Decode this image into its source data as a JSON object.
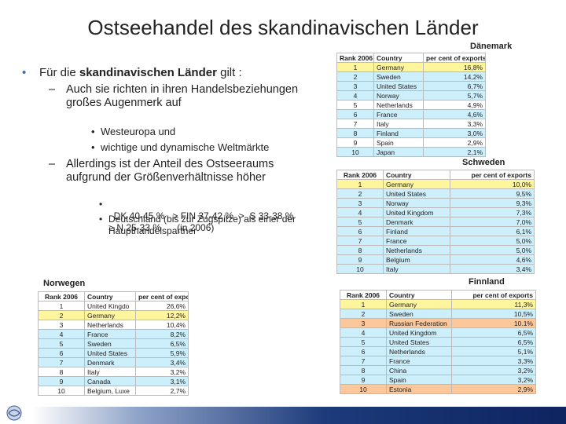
{
  "title": "Ostseehandel des skandinavischen Länder",
  "bullets": [
    {
      "parts": [
        "Für die ",
        "skandinavischen Länder",
        " gilt :"
      ],
      "sub": [
        {
          "text": "Auch sie richten in ihren Handelsbeziehungen großes Augenmerk auf",
          "sub": [
            "Westeuropa und",
            "wichtige und dynamische Weltmärkte"
          ]
        },
        {
          "text": "Allerdings ist der Anteil des Ostseeraums aufgrund der Größenverhältnisse höher",
          "sub": [
            "DK 40-45 %   > FIN 37-42 %  >  S 33-38 %     > N 25-33 %      (in 2006)",
            "Deutschland (bis zur Zugspitze) als einer der Haupthandelspartner"
          ]
        }
      ]
    }
  ],
  "tables": [
    {
      "label": "Dänemark",
      "header": [
        "Rank 2006",
        "Country",
        "per cent of exports"
      ],
      "rows": [
        [
          1,
          "Germany",
          "16,8%",
          "#fff59d"
        ],
        [
          2,
          "Sweden",
          "14,2%",
          "#cdeefb"
        ],
        [
          3,
          "United States",
          "6,7%",
          "#cdeefb"
        ],
        [
          4,
          "Norway",
          "5,7%",
          "#cdeefb"
        ],
        [
          5,
          "Netherlands",
          "4,9%",
          "#ffffff"
        ],
        [
          6,
          "France",
          "4,6%",
          "#cdeefb"
        ],
        [
          7,
          "Italy",
          "3,3%",
          "#ffffff"
        ],
        [
          8,
          "Finland",
          "3,0%",
          "#cdeefb"
        ],
        [
          9,
          "Spain",
          "2,9%",
          "#ffffff"
        ],
        [
          10,
          "Japan",
          "2,1%",
          "#cdeefb"
        ]
      ]
    },
    {
      "label": "Schweden",
      "header": [
        "Rank 2006",
        "Country",
        "per cent of exports"
      ],
      "rows": [
        [
          1,
          "Germany",
          "10,0%",
          "#fff59d"
        ],
        [
          2,
          "United States",
          "9,5%",
          "#cdeefb"
        ],
        [
          3,
          "Norway",
          "9,3%",
          "#cdeefb"
        ],
        [
          4,
          "United Kingdom",
          "7,3%",
          "#cdeefb"
        ],
        [
          5,
          "Denmark",
          "7,0%",
          "#cdeefb"
        ],
        [
          6,
          "Finland",
          "6,1%",
          "#cdeefb"
        ],
        [
          7,
          "France",
          "5,0%",
          "#cdeefb"
        ],
        [
          8,
          "Netherlands",
          "5,0%",
          "#cdeefb"
        ],
        [
          9,
          "Belgium",
          "4,6%",
          "#cdeefb"
        ],
        [
          10,
          "Italy",
          "3,4%",
          "#cdeefb"
        ]
      ]
    },
    {
      "label": "Norwegen",
      "header": [
        "Rank 2006",
        "Country",
        "per cent of exports"
      ],
      "rows": [
        [
          1,
          "United Kingdo",
          "26,6%",
          "#ffffff"
        ],
        [
          2,
          "Germany",
          "12,2%",
          "#fff59d"
        ],
        [
          3,
          "Netherlands",
          "10,4%",
          "#ffffff"
        ],
        [
          4,
          "France",
          "8,2%",
          "#cdeefb"
        ],
        [
          5,
          "Sweden",
          "6,5%",
          "#cdeefb"
        ],
        [
          6,
          "United States",
          "5,9%",
          "#cdeefb"
        ],
        [
          7,
          "Denmark",
          "3,4%",
          "#cdeefb"
        ],
        [
          8,
          "Italy",
          "3,2%",
          "#ffffff"
        ],
        [
          9,
          "Canada",
          "3,1%",
          "#cdeefb"
        ],
        [
          10,
          "Belgium, Luxe",
          "2,7%",
          "#ffffff"
        ]
      ]
    },
    {
      "label": "Finnland",
      "header": [
        "Rank 2006",
        "Country",
        "per cent of exports"
      ],
      "rows": [
        [
          1,
          "Germany",
          "11,3%",
          "#fff59d"
        ],
        [
          2,
          "Sweden",
          "10,5%",
          "#cdeefb"
        ],
        [
          3,
          "Russian Federation",
          "10.1%",
          "#fcc89b"
        ],
        [
          4,
          "United Kingdom",
          "6,5%",
          "#cdeefb"
        ],
        [
          5,
          "United States",
          "6,5%",
          "#cdeefb"
        ],
        [
          6,
          "Netherlands",
          "5,1%",
          "#cdeefb"
        ],
        [
          7,
          "France",
          "3,3%",
          "#cdeefb"
        ],
        [
          8,
          "China",
          "3,2%",
          "#cdeefb"
        ],
        [
          9,
          "Spain",
          "3,2%",
          "#cdeefb"
        ],
        [
          10,
          "Estonia",
          "2,9%",
          "#fcc89b"
        ]
      ]
    }
  ]
}
